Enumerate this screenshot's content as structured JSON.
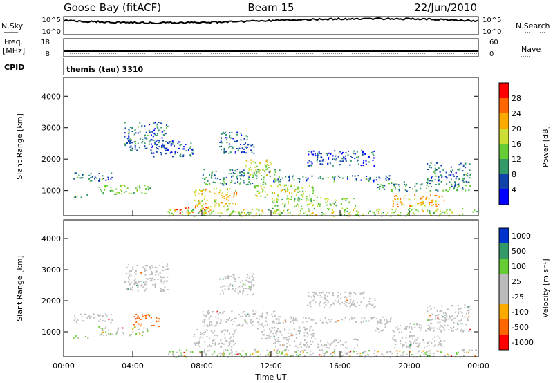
{
  "header": {
    "station": "Goose Bay (fitACF)",
    "beam": "Beam 15",
    "date": "22/Jun/2010"
  },
  "top_panels": {
    "nsky": {
      "label": "N.Sky",
      "right_label": "N.Search",
      "left_ticks": [
        "10^5",
        "10^0"
      ],
      "right_ticks": [
        "10^5",
        "10^0"
      ]
    },
    "freq": {
      "label": "Freq.",
      "unit": "[MHz]",
      "left_ticks": [
        "18",
        "8"
      ],
      "right_label": "Nave",
      "right_ticks": [
        "60",
        "0"
      ]
    },
    "cpid": {
      "label": "CPID",
      "value": "themis (tau) 3310"
    }
  },
  "colors": {
    "velocity_scale": [
      "#ff0000",
      "#ff6600",
      "#ffaa00",
      "#bbbbbb",
      "#bbbbbb",
      "#66cc33",
      "#339966",
      "#0033cc"
    ],
    "power_scale": [
      "#0000ff",
      "#1144aa",
      "#339966",
      "#66cc33",
      "#ccdd33",
      "#ffaa00",
      "#ff6600",
      "#ff0000"
    ]
  },
  "chart_data": [
    {
      "type": "heatmap",
      "name": "power",
      "ylabel": "Slant Range [km]",
      "yticks": [
        "1000",
        "2000",
        "3000",
        "4000"
      ],
      "ylim": [
        200,
        4600
      ],
      "xlim": [
        "00:00",
        "24:00"
      ],
      "colorbar": {
        "label": "Power [dB]",
        "ticks": [
          "4",
          "8",
          "12",
          "16",
          "20",
          "24",
          "28"
        ],
        "range": [
          0,
          32
        ]
      },
      "scatter_regions": [
        {
          "t": [
            0.5,
            2.8
          ],
          "r": [
            1300,
            1600
          ],
          "level": 8
        },
        {
          "t": [
            0.5,
            1.5
          ],
          "r": [
            800,
            900
          ],
          "level": 12
        },
        {
          "t": [
            2.0,
            5.0
          ],
          "r": [
            900,
            1200
          ],
          "level": 14
        },
        {
          "t": [
            3.5,
            6.0
          ],
          "r": [
            2300,
            3200
          ],
          "level": 8
        },
        {
          "t": [
            5.0,
            7.5
          ],
          "r": [
            2100,
            2600
          ],
          "level": 6
        },
        {
          "t": [
            6.5,
            8.5
          ],
          "r": [
            300,
            500
          ],
          "level": 26
        },
        {
          "t": [
            7.5,
            10.0
          ],
          "r": [
            500,
            1100
          ],
          "level": 20
        },
        {
          "t": [
            8.0,
            12.5
          ],
          "r": [
            1200,
            1700
          ],
          "level": 10
        },
        {
          "t": [
            9.0,
            11.0
          ],
          "r": [
            2200,
            2900
          ],
          "level": 7
        },
        {
          "t": [
            10.5,
            12.0
          ],
          "r": [
            1500,
            2000
          ],
          "level": 18
        },
        {
          "t": [
            11.0,
            14.5
          ],
          "r": [
            800,
            1200
          ],
          "level": 16
        },
        {
          "t": [
            12.0,
            19.0
          ],
          "r": [
            1300,
            1500
          ],
          "level": 8
        },
        {
          "t": [
            12.0,
            17.0
          ],
          "r": [
            500,
            800
          ],
          "level": 14
        },
        {
          "t": [
            14.0,
            18.0
          ],
          "r": [
            1800,
            2300
          ],
          "level": 6
        },
        {
          "t": [
            18.0,
            23.5
          ],
          "r": [
            1000,
            1300
          ],
          "level": 10
        },
        {
          "t": [
            19.0,
            22.0
          ],
          "r": [
            500,
            900
          ],
          "level": 22
        },
        {
          "t": [
            21.0,
            23.5
          ],
          "r": [
            1300,
            1900
          ],
          "level": 8
        },
        {
          "t": [
            6.0,
            24.0
          ],
          "r": [
            200,
            450
          ],
          "level": 16
        }
      ]
    },
    {
      "type": "heatmap",
      "name": "velocity",
      "ylabel": "Slant Range [km]",
      "xlabel": "Time UT",
      "yticks": [
        "1000",
        "2000",
        "3000",
        "4000"
      ],
      "xticks": [
        "00:00",
        "04:00",
        "08:00",
        "12:00",
        "16:00",
        "20:00",
        "00:00"
      ],
      "ylim": [
        200,
        4600
      ],
      "xlim": [
        "00:00",
        "24:00"
      ],
      "colorbar": {
        "label": "Velocity [m s⁻¹]",
        "ticks": [
          "-1000",
          "-500",
          "-100",
          "-25",
          "25",
          "100",
          "500",
          "1000"
        ]
      },
      "scatter_regions": [
        {
          "t": [
            0.5,
            2.8
          ],
          "r": [
            1300,
            1600
          ],
          "level": 0
        },
        {
          "t": [
            0.5,
            1.5
          ],
          "r": [
            800,
            900
          ],
          "level": 80
        },
        {
          "t": [
            2.0,
            5.0
          ],
          "r": [
            900,
            1200
          ],
          "level": 70
        },
        {
          "t": [
            3.5,
            6.0
          ],
          "r": [
            2300,
            3200
          ],
          "level": 0
        },
        {
          "t": [
            4.0,
            5.5
          ],
          "r": [
            1200,
            1600
          ],
          "level": -400
        },
        {
          "t": [
            7.5,
            10.0
          ],
          "r": [
            500,
            1100
          ],
          "level": 0
        },
        {
          "t": [
            8.0,
            12.5
          ],
          "r": [
            1200,
            1700
          ],
          "level": 0
        },
        {
          "t": [
            9.0,
            11.0
          ],
          "r": [
            2200,
            2900
          ],
          "level": 0
        },
        {
          "t": [
            11.0,
            14.5
          ],
          "r": [
            800,
            1200
          ],
          "level": 0
        },
        {
          "t": [
            12.0,
            19.0
          ],
          "r": [
            1300,
            1500
          ],
          "level": 0
        },
        {
          "t": [
            12.0,
            17.0
          ],
          "r": [
            500,
            800
          ],
          "level": 0
        },
        {
          "t": [
            14.0,
            18.0
          ],
          "r": [
            1800,
            2300
          ],
          "level": 0
        },
        {
          "t": [
            18.0,
            23.5
          ],
          "r": [
            1000,
            1300
          ],
          "level": 0
        },
        {
          "t": [
            19.0,
            22.0
          ],
          "r": [
            500,
            900
          ],
          "level": 0
        },
        {
          "t": [
            21.0,
            23.5
          ],
          "r": [
            1300,
            1900
          ],
          "level": 0
        },
        {
          "t": [
            6.0,
            24.0
          ],
          "r": [
            200,
            450
          ],
          "level": 60
        }
      ]
    }
  ]
}
